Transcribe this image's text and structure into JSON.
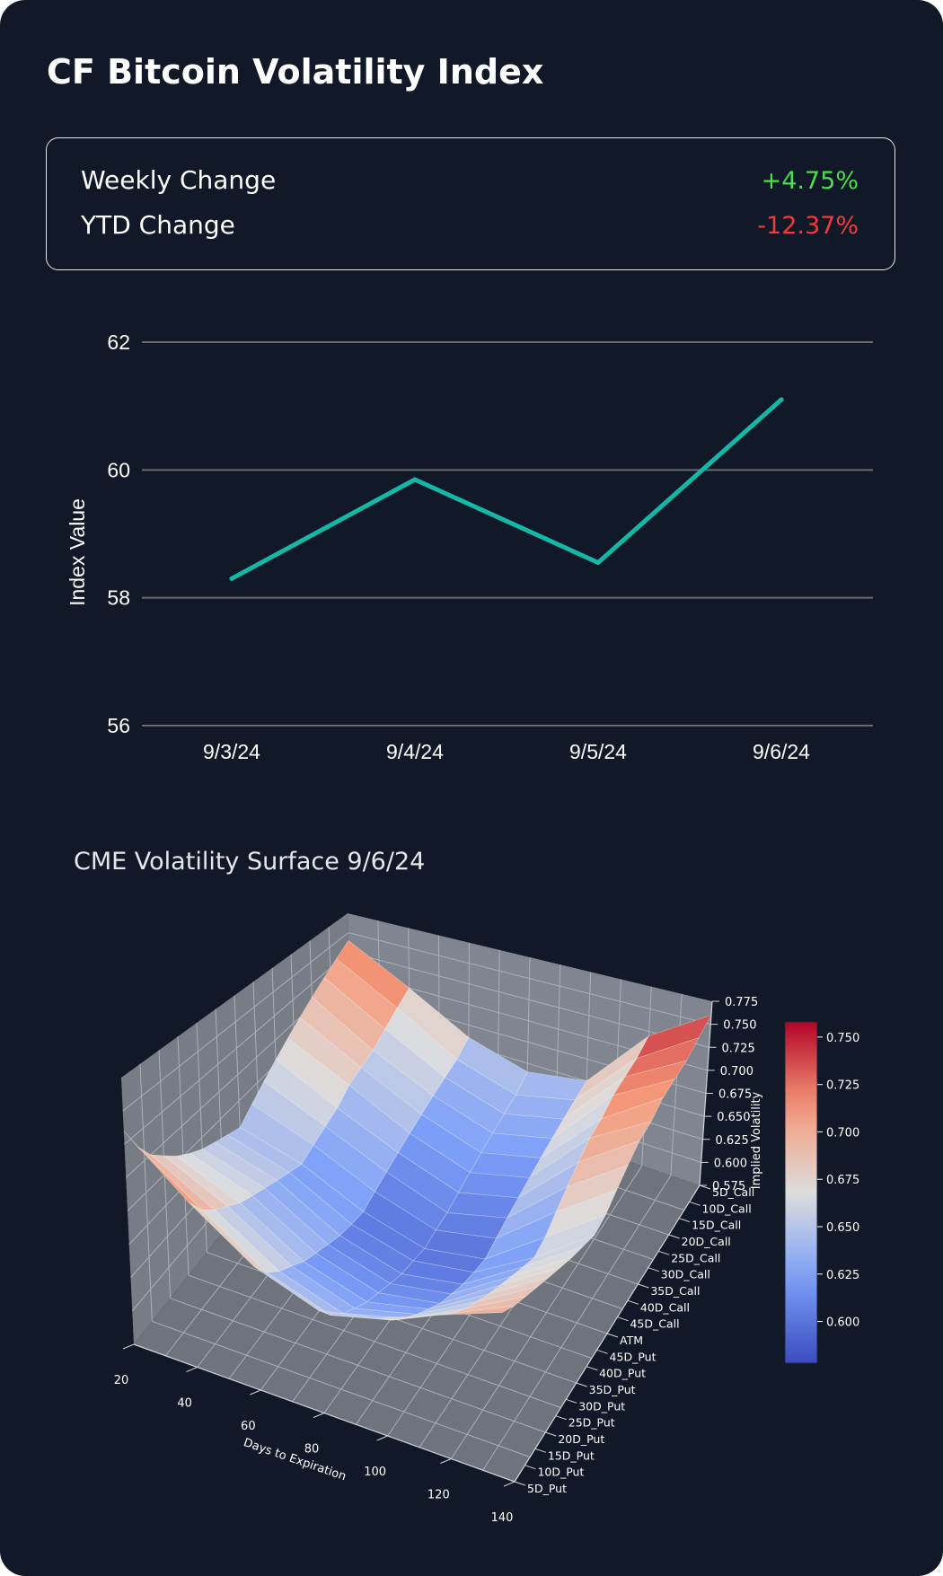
{
  "header": {
    "title": "CF Bitcoin Volatility Index"
  },
  "stats": {
    "weekly": {
      "label": "Weekly Change",
      "value": "+4.75%",
      "color": "#4ade4a"
    },
    "ytd": {
      "label": "YTD Change",
      "value": "-12.37%",
      "color": "#ef3b3b"
    }
  },
  "surface": {
    "title": "CME Volatility Surface 9/6/24"
  },
  "chart_data": [
    {
      "type": "line",
      "title": "",
      "xlabel": "",
      "ylabel": "Index Value",
      "categories": [
        "9/3/24",
        "9/4/24",
        "9/5/24",
        "9/6/24"
      ],
      "values": [
        58.3,
        59.85,
        58.55,
        61.1
      ],
      "ylim": [
        56,
        62
      ],
      "yticks": [
        56,
        58,
        60,
        62
      ],
      "grid": true,
      "colors": {
        "line": "#14b8a6",
        "grid": "#6b6b6b",
        "text": "#ffffff"
      }
    },
    {
      "type": "surface",
      "title": "CME Volatility Surface 9/6/24",
      "xlabel": "Days to Expiration",
      "ylabel": "",
      "zlabel": "Implied Volatility",
      "x": [
        20,
        40,
        60,
        80,
        100,
        120,
        140
      ],
      "y": [
        "5D_Call",
        "10D_Call",
        "15D_Call",
        "20D_Call",
        "25D_Call",
        "30D_Call",
        "35D_Call",
        "40D_Call",
        "45D_Call",
        "ATM",
        "45D_Put",
        "40D_Put",
        "35D_Put",
        "30D_Put",
        "25D_Put",
        "20D_Put",
        "15D_Put",
        "10D_Put",
        "5D_Put"
      ],
      "zticks": [
        "0.575",
        "0.600",
        "0.625",
        "0.650",
        "0.675",
        "0.700",
        "0.725",
        "0.750",
        "0.775"
      ],
      "colorbar_ticks": [
        "0.600",
        "0.625",
        "0.650",
        "0.675",
        "0.700",
        "0.725",
        "0.750"
      ],
      "colorbar_range": [
        0.578,
        0.758
      ],
      "colormap": "coolwarm",
      "z": [
        [
          0.74,
          0.7,
          0.66,
          0.64,
          0.65,
          0.72,
          0.76
        ],
        [
          0.73,
          0.69,
          0.65,
          0.63,
          0.645,
          0.71,
          0.75
        ],
        [
          0.72,
          0.68,
          0.645,
          0.625,
          0.64,
          0.705,
          0.74
        ],
        [
          0.71,
          0.67,
          0.64,
          0.62,
          0.635,
          0.7,
          0.735
        ],
        [
          0.7,
          0.665,
          0.635,
          0.615,
          0.63,
          0.69,
          0.73
        ],
        [
          0.69,
          0.66,
          0.63,
          0.61,
          0.625,
          0.685,
          0.72
        ],
        [
          0.68,
          0.65,
          0.625,
          0.605,
          0.62,
          0.675,
          0.715
        ],
        [
          0.67,
          0.645,
          0.62,
          0.6,
          0.615,
          0.665,
          0.705
        ],
        [
          0.66,
          0.64,
          0.615,
          0.598,
          0.61,
          0.655,
          0.695
        ],
        [
          0.65,
          0.635,
          0.61,
          0.595,
          0.605,
          0.645,
          0.685
        ],
        [
          0.655,
          0.64,
          0.612,
          0.598,
          0.607,
          0.64,
          0.68
        ],
        [
          0.66,
          0.645,
          0.615,
          0.6,
          0.61,
          0.645,
          0.683
        ],
        [
          0.665,
          0.65,
          0.62,
          0.605,
          0.615,
          0.65,
          0.686
        ],
        [
          0.672,
          0.655,
          0.625,
          0.61,
          0.62,
          0.655,
          0.69
        ],
        [
          0.68,
          0.66,
          0.63,
          0.615,
          0.628,
          0.66,
          0.694
        ],
        [
          0.69,
          0.668,
          0.638,
          0.622,
          0.636,
          0.666,
          0.698
        ],
        [
          0.7,
          0.675,
          0.645,
          0.63,
          0.645,
          0.672,
          0.702
        ],
        [
          0.715,
          0.685,
          0.655,
          0.64,
          0.655,
          0.68,
          0.706
        ],
        [
          0.735,
          0.7,
          0.67,
          0.655,
          0.668,
          0.69,
          0.712
        ]
      ]
    }
  ]
}
